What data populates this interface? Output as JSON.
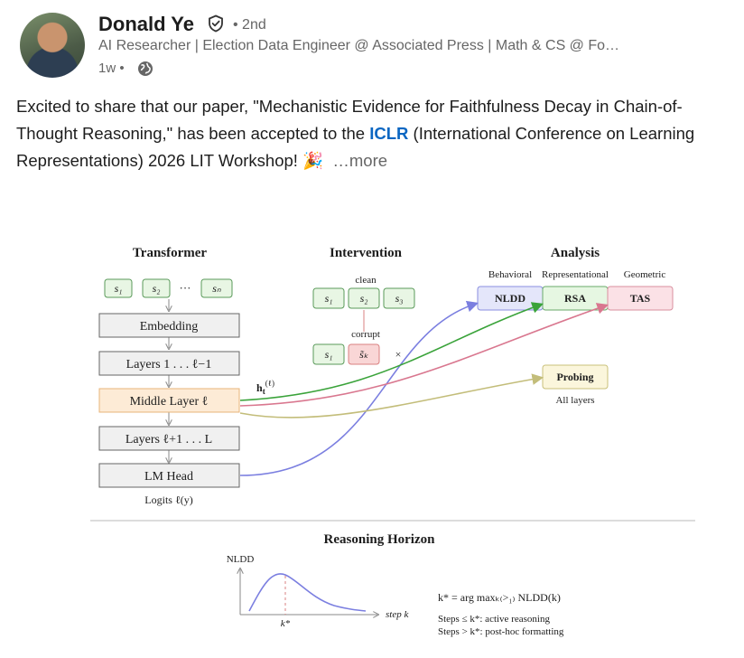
{
  "author": {
    "name": "Donald Ye",
    "degree": "• 2nd",
    "headline": "AI Researcher | Election Data Engineer @ Associated Press | Math & CS @ Fo…",
    "time": "1w •",
    "verified_icon": "verified-shield-icon",
    "visibility_icon": "globe-icon"
  },
  "post": {
    "text_before": "Excited to share that our paper, \"Mechanistic Evidence for Faithfulness Decay in Chain-of-Thought Reasoning,\" has been accepted to the ",
    "hashtag": "ICLR",
    "text_after": " (International Conference on Learning Representations) 2026 LIT Workshop! 🎉",
    "more": "…more"
  },
  "figure": {
    "transformer": {
      "title": "Transformer",
      "tokens": [
        "s₁",
        "s₂",
        "···",
        "sₙ"
      ],
      "layers": [
        "Embedding",
        "Layers 1 . . . ℓ−1",
        "Middle Layer ℓ",
        "Layers ℓ+1 . . . L",
        "LM Head"
      ],
      "output": "Logits ℓ(y)",
      "hidden_label": "h",
      "hidden_sub": "t",
      "hidden_sup": "(ℓ)"
    },
    "intervention": {
      "title": "Intervention",
      "clean_label": "clean",
      "clean_tokens": [
        "s₁",
        "s₂",
        "s₃"
      ],
      "corrupt_label": "corrupt",
      "corrupt_tokens": [
        "s₁",
        "s̃ₖ"
      ],
      "x_mark": "×"
    },
    "analysis": {
      "title": "Analysis",
      "categories": [
        "Behavioral",
        "Representational",
        "Geometric"
      ],
      "boxes": [
        "NLDD",
        "RSA",
        "TAS"
      ],
      "probing": "Probing",
      "probing_note": "All layers"
    },
    "horizon": {
      "title": "Reasoning Horizon",
      "ylabel": "NLDD",
      "xlabel": "step k",
      "peak_label": "k*",
      "formula": "k* = arg maxₖ₍>₁₎ NLDD(k)",
      "rule1": "Steps ≤ k*: active reasoning",
      "rule2": "Steps > k*: post-hoc formatting"
    },
    "colors": {
      "token_fill": "#e8f6e4",
      "token_stroke": "#5a9a5a",
      "layer_fill": "#f0f0f0",
      "layer_stroke": "#666666",
      "middle_fill": "#fdebd6",
      "middle_stroke": "#e8b47a",
      "nldd_fill": "#e4e6fa",
      "rsa_fill": "#e6f7e2",
      "tas_fill": "#fbe1e6",
      "probing_fill": "#fbf6dc",
      "curve_blue": "#7b7fe0",
      "curve_green": "#3aa33a",
      "curve_pink": "#d9778f",
      "curve_olive": "#c3bd7a",
      "corrupt_fill": "#f9d6d6",
      "corrupt_stroke": "#d98080"
    }
  }
}
